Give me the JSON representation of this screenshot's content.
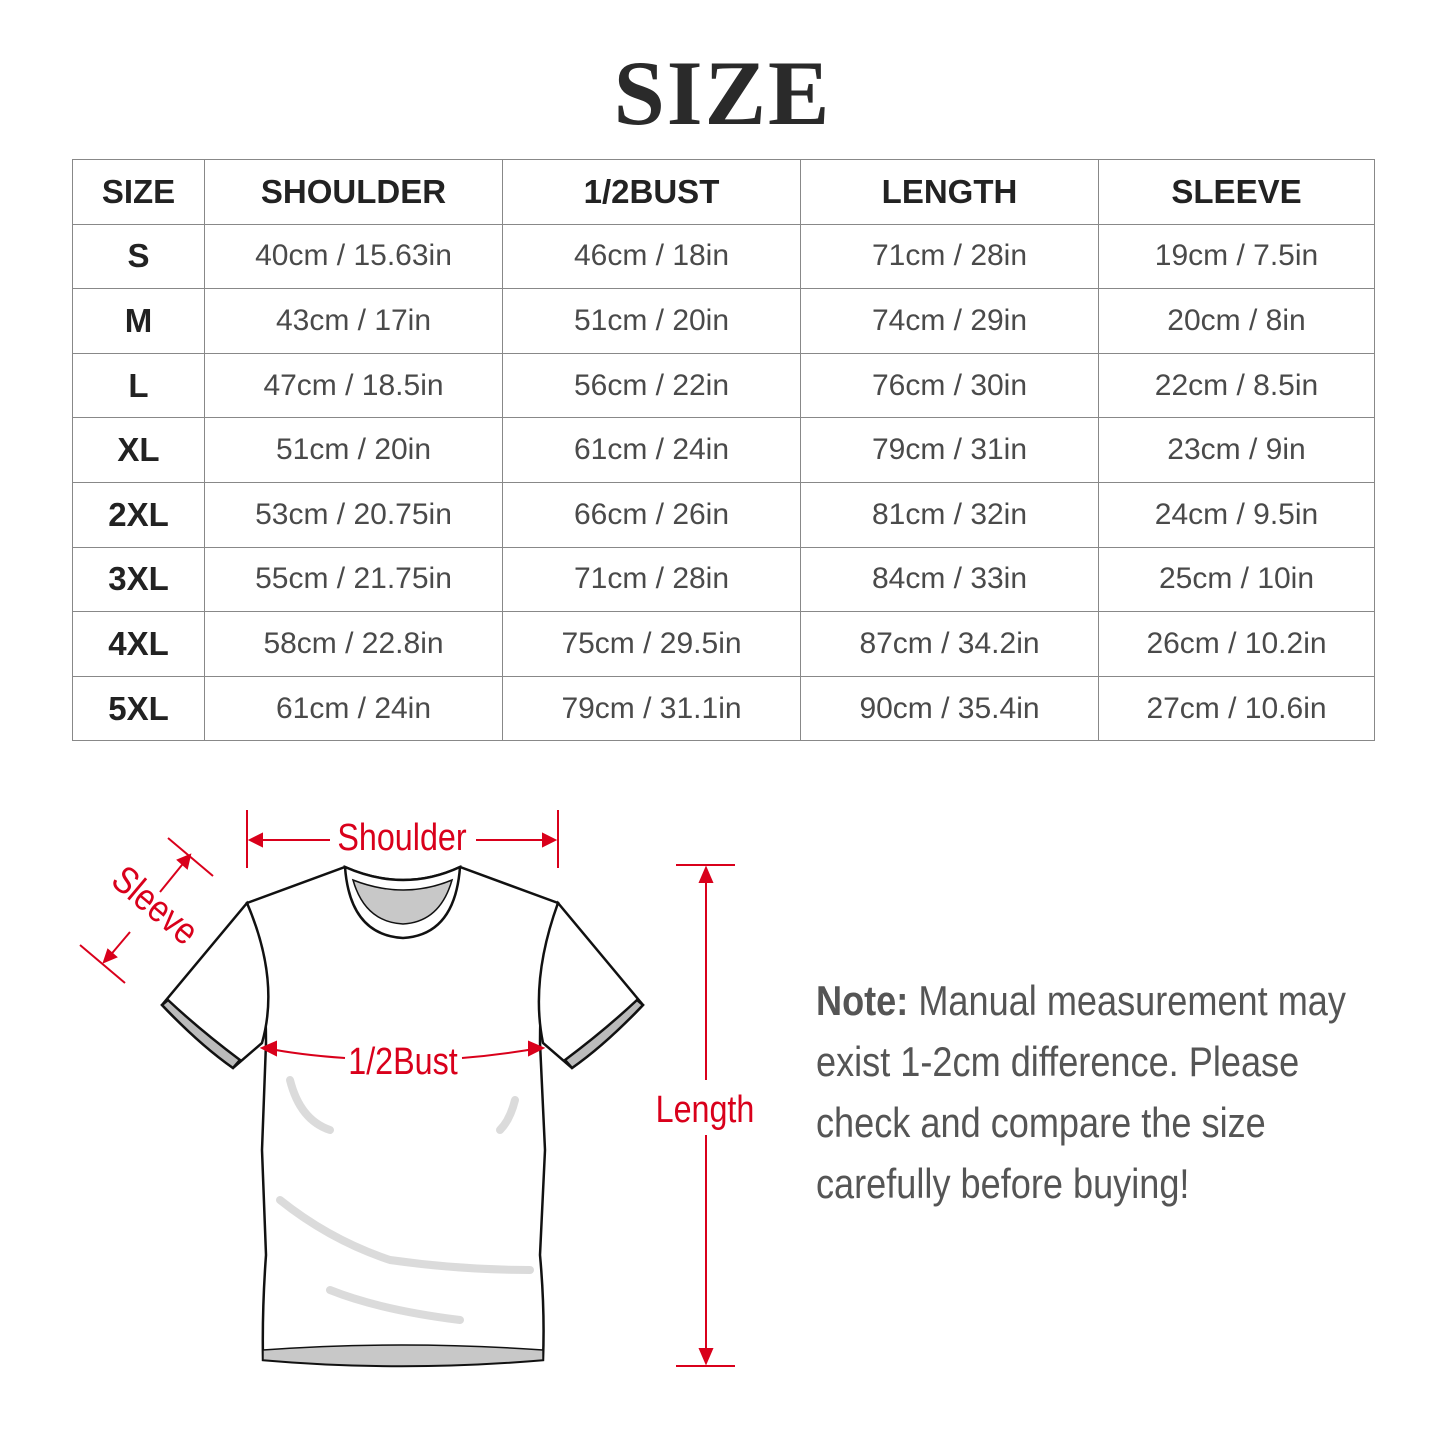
{
  "title": "SIZE",
  "table": {
    "headers": [
      "SIZE",
      "SHOULDER",
      "1/2BUST",
      "LENGTH",
      "SLEEVE"
    ],
    "rows": [
      [
        "S",
        "40cm / 15.63in",
        "46cm / 18in",
        "71cm / 28in",
        "19cm / 7.5in"
      ],
      [
        "M",
        "43cm / 17in",
        "51cm / 20in",
        "74cm / 29in",
        "20cm / 8in"
      ],
      [
        "L",
        "47cm / 18.5in",
        "56cm / 22in",
        "76cm / 30in",
        "22cm / 8.5in"
      ],
      [
        "XL",
        "51cm / 20in",
        "61cm / 24in",
        "79cm / 31in",
        "23cm / 9in"
      ],
      [
        "2XL",
        "53cm / 20.75in",
        "66cm / 26in",
        "81cm / 32in",
        "24cm / 9.5in"
      ],
      [
        "3XL",
        "55cm / 21.75in",
        "71cm / 28in",
        "84cm / 33in",
        "25cm / 10in"
      ],
      [
        "4XL",
        "58cm / 22.8in",
        "75cm / 29.5in",
        "87cm / 34.2in",
        "26cm / 10.2in"
      ],
      [
        "5XL",
        "61cm / 24in",
        "79cm / 31.1in",
        "90cm / 35.4in",
        "27cm / 10.6in"
      ]
    ]
  },
  "diagram": {
    "shoulder": "Shoulder",
    "sleeve": "Sleeve",
    "bust": "1/2Bust",
    "length": "Length",
    "accent_color": "#d9001b"
  },
  "note": {
    "label": "Note:",
    "lines": [
      " Manual measurement may",
      "exist 1-2cm difference. Please",
      "check and compare the size",
      "carefully before buying!"
    ]
  }
}
